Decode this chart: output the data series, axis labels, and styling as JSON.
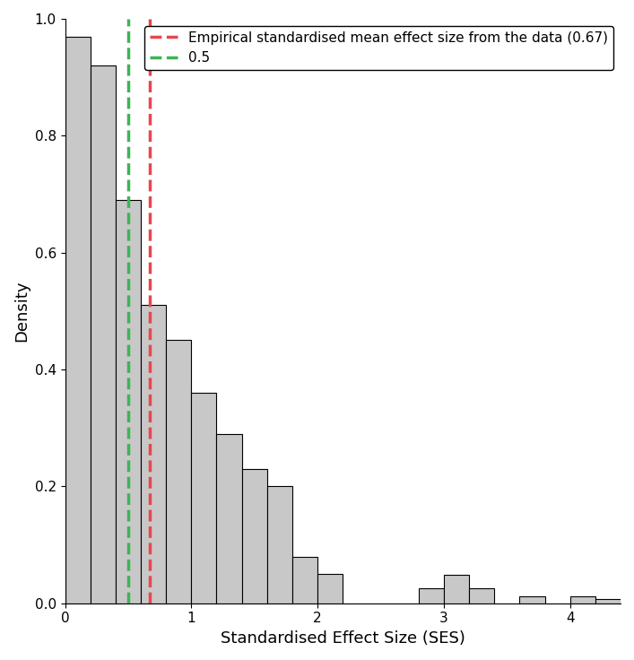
{
  "bar_edges": [
    0.0,
    0.2,
    0.4,
    0.6,
    0.8,
    1.0,
    1.2,
    1.4,
    1.6,
    1.8,
    2.0,
    2.2,
    2.4,
    2.6,
    2.8,
    3.0,
    3.2,
    3.4,
    3.6,
    3.8,
    4.0,
    4.2,
    4.4
  ],
  "bar_heights": [
    0.97,
    0.92,
    0.69,
    0.51,
    0.45,
    0.36,
    0.29,
    0.23,
    0.2,
    0.08,
    0.05,
    0.0,
    0.0,
    0.0,
    0.025,
    0.048,
    0.025,
    0.0,
    0.012,
    0.0,
    0.012,
    0.008
  ],
  "bar_color": "#c8c8c8",
  "bar_edgecolor": "#000000",
  "bar_linewidth": 0.8,
  "vline_red": 0.67,
  "vline_green": 0.5,
  "vline_red_color": "#e8474e",
  "vline_green_color": "#3cb554",
  "vline_linewidth": 2.5,
  "vline_linestyle": "--",
  "xlabel": "Standardised Effect Size (SES)",
  "ylabel": "Density",
  "xlim": [
    0.0,
    4.4
  ],
  "ylim": [
    0.0,
    1.0
  ],
  "yticks": [
    0.0,
    0.2,
    0.4,
    0.6,
    0.8,
    1.0
  ],
  "xticks": [
    0,
    1,
    2,
    3,
    4
  ],
  "legend_red_label": "Empirical standardised mean effect size from the data (0.67)",
  "legend_green_label": "0.5",
  "figsize": [
    7.07,
    7.36
  ],
  "dpi": 100,
  "bg_color": "#ffffff",
  "font_size": 11,
  "axis_label_size": 13,
  "tick_label_size": 11
}
